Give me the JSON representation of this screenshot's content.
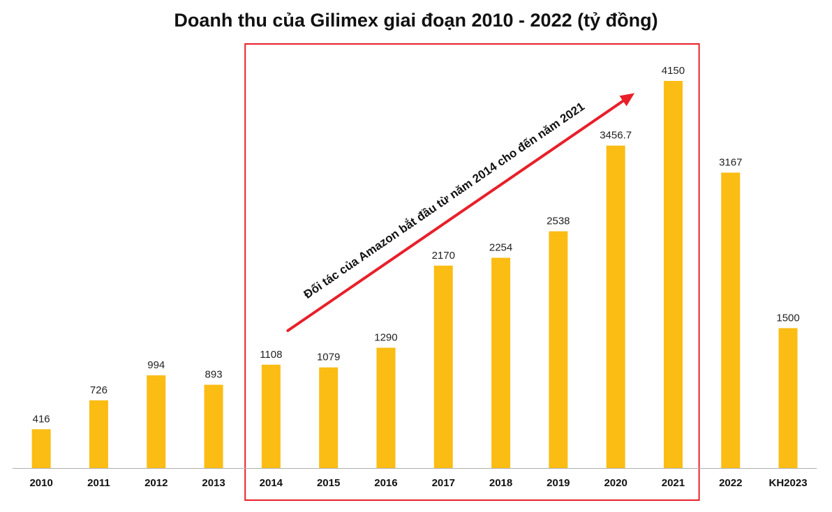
{
  "chart_data": {
    "type": "bar",
    "title": "Doanh thu của Gilimex giai đoạn 2010 - 2022 (tỷ đồng)",
    "categories": [
      "2010",
      "2011",
      "2012",
      "2013",
      "2014",
      "2015",
      "2016",
      "2017",
      "2018",
      "2019",
      "2020",
      "2021",
      "2022",
      "KH2023"
    ],
    "values": [
      416,
      726,
      994,
      893,
      1108,
      1079,
      1290,
      2170,
      2254,
      2538,
      3456.7,
      4150,
      3167,
      1500
    ],
    "value_labels": [
      "416",
      "726",
      "994",
      "893",
      "1108",
      "1079",
      "1290",
      "2170",
      "2254",
      "2538",
      "3456.7",
      "4150",
      "3167",
      "1500"
    ],
    "ylim": [
      0,
      4150
    ],
    "grid": false,
    "xlabel": "",
    "ylabel": "",
    "highlight": {
      "from_category": "2014",
      "to_category": "2021",
      "border_color": "#e8202a"
    },
    "annotation": "Đối tác của Amazon bắt đầu từ năm 2014 cho đến năm 2021",
    "colors": {
      "bar": "#fbbc14",
      "arrow": "#e8202a",
      "axis": "#b0b0b0"
    }
  }
}
